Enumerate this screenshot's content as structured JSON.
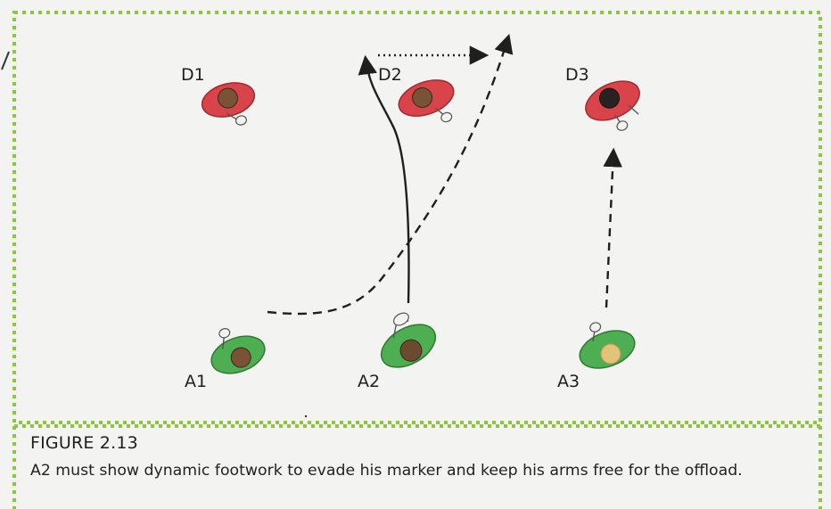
{
  "figure": {
    "title": "FIGURE 2.13",
    "caption": "A2 must show dynamic footwork to evade his marker and keep his arms free for the offload."
  },
  "players": {
    "defenders": [
      {
        "id": "d1",
        "label": "D1",
        "shirt_color": "#d9434a",
        "head_color": "#7a5236"
      },
      {
        "id": "d2",
        "label": "D2",
        "shirt_color": "#d9434a",
        "head_color": "#7a5236"
      },
      {
        "id": "d3",
        "label": "D3",
        "shirt_color": "#d9434a",
        "head_color": "#2a2220"
      }
    ],
    "attackers": [
      {
        "id": "a1",
        "label": "A1",
        "shirt_color": "#4dae52",
        "head_color": "#7a5236"
      },
      {
        "id": "a2",
        "label": "A2",
        "shirt_color": "#4dae52",
        "head_color": "#6b4a30"
      },
      {
        "id": "a3",
        "label": "A3",
        "shirt_color": "#4dae52",
        "head_color": "#e3c27a"
      }
    ]
  },
  "lines": {
    "dotted_green_border_color": "#8cc63f"
  }
}
